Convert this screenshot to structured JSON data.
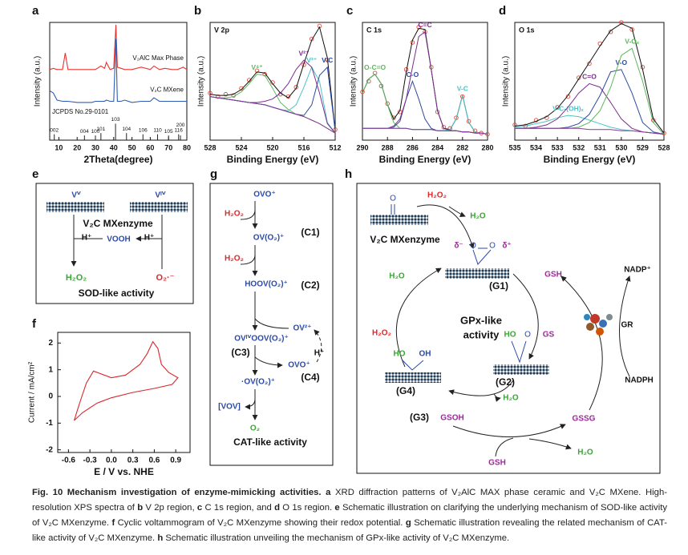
{
  "chart_data": [
    {
      "panel": "a",
      "type": "line",
      "xlabel": "2Theta(degree)",
      "ylabel": "Intensity (a.u.)",
      "xlim": [
        5,
        80
      ],
      "xticks": [
        10,
        20,
        30,
        40,
        50,
        60,
        70,
        80
      ],
      "ylim": [
        0,
        100
      ],
      "x": [
        5,
        7,
        9,
        12,
        13.5,
        15,
        20,
        25,
        28,
        30,
        33,
        35,
        36,
        38,
        40,
        41.2,
        42,
        44,
        46,
        50,
        55,
        60,
        62,
        65,
        68,
        72,
        75,
        78,
        80
      ],
      "series": [
        {
          "name": "V₂AlC Max Phase",
          "color": "#e8322f",
          "values": [
            60,
            61,
            60,
            60,
            74,
            60,
            60,
            60,
            60,
            60,
            63,
            61,
            66,
            60,
            61,
            98,
            62,
            61,
            60,
            60,
            62,
            60,
            63,
            60,
            61,
            60,
            60,
            62,
            60
          ]
        },
        {
          "name": "V₂C MXene",
          "color": "#2f5bb5",
          "values": [
            42,
            40,
            34,
            33,
            33,
            33,
            32,
            32,
            32,
            33,
            33,
            33,
            34,
            33,
            33,
            86,
            33,
            33,
            34,
            32,
            33,
            33,
            36,
            33,
            33,
            33,
            33,
            33,
            33
          ]
        }
      ],
      "reference": {
        "name": "JCPDS No.29-0101",
        "color": "#222222",
        "x": [
          7.5,
          24,
          30,
          33,
          41,
          47,
          56,
          64,
          70,
          75.5,
          76.5
        ],
        "values": [
          5,
          4,
          4,
          6,
          14,
          6,
          5,
          5,
          4,
          5,
          4
        ],
        "labels": [
          "002",
          "004",
          "100",
          "101",
          "103",
          "104",
          "106",
          "110",
          "105",
          "116",
          "200"
        ]
      }
    },
    {
      "panel": "b",
      "type": "xps",
      "title": "V 2p",
      "xlabel": "Binding Energy (eV)",
      "ylabel": "Intensity (a.u.)",
      "xlim": [
        528,
        512
      ],
      "xticks": [
        528,
        524,
        520,
        516,
        512
      ],
      "ylim": [
        0,
        100
      ],
      "x": [
        528,
        527,
        526,
        525,
        524,
        523,
        522,
        521,
        520,
        519,
        518,
        517,
        516,
        515,
        514,
        513,
        512
      ],
      "series": [
        {
          "color": "#e04a3a",
          "marker": "circle",
          "values": [
            40,
            37,
            39,
            38,
            44,
            51,
            59,
            56,
            49,
            39,
            37,
            45,
            64,
            86,
            97,
            68,
            9
          ]
        },
        {
          "color": "#111111",
          "values": [
            39,
            38,
            38,
            39,
            43,
            50,
            58,
            57,
            48,
            40,
            36,
            44,
            65,
            85,
            96,
            70,
            8
          ]
        },
        {
          "name": "V⁴⁺",
          "color": "#5cb85c",
          "values": [
            37,
            36,
            36,
            37,
            41,
            48,
            56,
            55,
            44,
            32,
            26,
            22,
            20,
            17,
            14,
            10,
            6
          ]
        },
        {
          "name": "V³⁺",
          "color": "#4cc3c9",
          "values": [
            37,
            36,
            35,
            34,
            33,
            32,
            31,
            30,
            28,
            26,
            25,
            30,
            45,
            62,
            50,
            15,
            6
          ]
        },
        {
          "name": "V²⁺",
          "color": "#7b2d8e",
          "values": [
            37,
            36,
            35,
            34,
            33,
            32,
            32,
            33,
            35,
            40,
            48,
            60,
            68,
            62,
            40,
            14,
            6
          ]
        },
        {
          "name": "V-C",
          "color": "#2c4aa0",
          "values": [
            37,
            36,
            35,
            34,
            33,
            32,
            31,
            30,
            28,
            26,
            24,
            22,
            21,
            30,
            55,
            62,
            8
          ]
        },
        {
          "color": "#8a3a9a",
          "values": [
            37,
            36,
            35,
            34,
            33,
            32,
            31,
            30,
            28,
            26,
            24,
            22,
            20,
            17,
            14,
            10,
            6
          ]
        }
      ]
    },
    {
      "panel": "c",
      "type": "xps",
      "title": "C 1s",
      "xlabel": "Binding Energy (eV)",
      "ylabel": "Intensity (a.u.)",
      "xlim": [
        290,
        280
      ],
      "xticks": [
        290,
        288,
        286,
        284,
        282,
        280
      ],
      "ylim": [
        0,
        100
      ],
      "x": [
        290,
        289.5,
        289,
        288.5,
        288,
        287.5,
        287,
        286.5,
        286,
        285.5,
        285,
        284.5,
        284,
        283.5,
        283,
        282.5,
        282,
        281.5,
        281,
        280.5,
        280
      ],
      "series": [
        {
          "color": "#e04a3a",
          "marker": "circle",
          "values": [
            41,
            50,
            57,
            46,
            31,
            19,
            24,
            60,
            83,
            96,
            92,
            62,
            24,
            11,
            10,
            19,
            37,
            16,
            8,
            6,
            5
          ]
        },
        {
          "color": "#111111",
          "values": [
            40,
            52,
            56,
            48,
            30,
            18,
            25,
            58,
            85,
            95,
            94,
            60,
            25,
            10,
            9,
            18,
            38,
            15,
            7,
            6,
            5
          ]
        },
        {
          "name": "O-C=O",
          "color": "#5cb85c",
          "values": [
            40,
            52,
            56,
            48,
            30,
            15,
            10,
            10,
            9,
            9,
            9,
            9,
            8,
            8,
            8,
            8,
            7,
            7,
            6,
            6,
            5
          ]
        },
        {
          "name": "C-O",
          "color": "#2c4aa0",
          "values": [
            10,
            10,
            10,
            10,
            10,
            11,
            16,
            35,
            50,
            35,
            18,
            10,
            8,
            8,
            8,
            8,
            7,
            7,
            6,
            6,
            5
          ]
        },
        {
          "name": "C=C",
          "color": "#7b2d8e",
          "values": [
            10,
            10,
            10,
            10,
            10,
            12,
            18,
            35,
            62,
            88,
            92,
            60,
            25,
            10,
            8,
            8,
            7,
            7,
            6,
            6,
            5
          ]
        },
        {
          "name": "V-C",
          "color": "#4cc3c9",
          "values": [
            10,
            10,
            10,
            10,
            10,
            10,
            10,
            10,
            9,
            9,
            9,
            9,
            8,
            8,
            9,
            18,
            38,
            15,
            7,
            6,
            5
          ]
        },
        {
          "color": "#8a3a9a",
          "values": [
            10,
            10,
            10,
            10,
            10,
            10,
            10,
            10,
            9,
            9,
            9,
            9,
            8,
            8,
            8,
            8,
            7,
            7,
            6,
            6,
            5
          ]
        }
      ]
    },
    {
      "panel": "d",
      "type": "xps",
      "title": "O 1s",
      "xlabel": "Binding Energy (eV)",
      "ylabel": "Intensity (a.u.)",
      "xlim": [
        535,
        528
      ],
      "xticks": [
        535,
        534,
        533,
        532,
        531,
        530,
        529,
        528
      ],
      "ylim": [
        0,
        100
      ],
      "x": [
        535,
        534.5,
        534,
        533.5,
        533,
        532.5,
        532,
        531.5,
        531,
        530.5,
        530,
        529.5,
        529,
        528.5,
        528
      ],
      "series": [
        {
          "color": "#e04a3a",
          "marker": "circle",
          "values": [
            13,
            12,
            17,
            19,
            28,
            37,
            53,
            65,
            82,
            92,
            100,
            94,
            62,
            17,
            6
          ]
        },
        {
          "color": "#111111",
          "values": [
            12,
            13,
            16,
            20,
            27,
            38,
            52,
            66,
            80,
            93,
            99,
            95,
            60,
            18,
            6
          ]
        },
        {
          "name": "V-C-(OH)ₓ",
          "color": "#4cc3c9",
          "values": [
            11,
            12,
            14,
            16,
            19,
            21,
            20,
            17,
            14,
            11,
            9,
            8,
            7,
            6,
            5
          ]
        },
        {
          "name": "C=O",
          "color": "#7b2d8e",
          "values": [
            10,
            10,
            11,
            13,
            18,
            28,
            40,
            48,
            45,
            32,
            18,
            10,
            7,
            6,
            5
          ]
        },
        {
          "name": "V-O",
          "color": "#2c4aa0",
          "values": [
            10,
            10,
            10,
            10,
            10,
            11,
            14,
            22,
            38,
            58,
            60,
            40,
            15,
            7,
            5
          ]
        },
        {
          "name": "V-Oₓ",
          "color": "#5cb85c",
          "values": [
            10,
            10,
            10,
            10,
            10,
            10,
            11,
            15,
            25,
            45,
            72,
            78,
            50,
            15,
            5
          ]
        },
        {
          "color": "#8a3a9a",
          "values": [
            10,
            10,
            10,
            10,
            10,
            10,
            10,
            9,
            9,
            9,
            8,
            8,
            7,
            6,
            5
          ]
        }
      ]
    },
    {
      "panel": "f",
      "type": "line",
      "xlabel": "E / V vs. NHE",
      "ylabel": "Current / mA/cm²",
      "xlim": [
        -0.75,
        1.1
      ],
      "xticks": [
        -0.6,
        -0.3,
        {
          "value": 0,
          "label": "0.0"
        },
        0.3,
        0.6,
        0.9
      ],
      "ylim": [
        -2.1,
        2.4
      ],
      "yticks": [
        -2,
        -1,
        0,
        1,
        2
      ],
      "x": [
        -0.52,
        -0.45,
        -0.35,
        -0.25,
        -0.15,
        0.0,
        0.2,
        0.4,
        0.5,
        0.58,
        0.65,
        0.7,
        0.8,
        0.93,
        0.85,
        0.6,
        0.3,
        0.0,
        -0.2,
        -0.4,
        -0.52
      ],
      "series": [
        {
          "color": "#d8262c",
          "values": [
            -0.9,
            -0.3,
            0.5,
            0.95,
            0.85,
            0.7,
            0.8,
            1.2,
            1.6,
            2.05,
            1.8,
            1.2,
            0.9,
            0.7,
            0.45,
            0.3,
            0.15,
            -0.05,
            -0.25,
            -0.6,
            -0.9
          ]
        }
      ]
    }
  ],
  "diagrams": {
    "e": {
      "panel": "e",
      "v_top_left": "Vⱽ",
      "v_top_right": "Vᴵⱽ",
      "enzyme": "V₂C MXenzyme",
      "proton_left": "H⁺",
      "intermediate": "VOOH",
      "proton_right": "H⁺",
      "product": "H₂O₂",
      "substrate": "O₂·⁻",
      "activity": "SOD-like activity"
    },
    "g": {
      "panel": "g",
      "s0": "OVO⁺",
      "r1": "H₂O₂",
      "s1": "OV(O₂)⁺",
      "c1": "(C1)",
      "r2": "H₂O₂",
      "s2": "HOOV(O₂)⁺",
      "c2": "(C2)",
      "s3b": "OV²⁺",
      "s3": "OVᴵⱽOOV(O₂)⁺",
      "c3": "(C3)",
      "proton": "H⁺",
      "s4b": "OVO⁺",
      "s4": "·OV(O₂)⁺",
      "c4": "(C4)",
      "side": "[VOV]",
      "product": "O₂",
      "activity": "CAT-like activity"
    },
    "h": {
      "panel": "h",
      "oxygen": "O",
      "enzyme": "V₂C MXenzyme",
      "h2o2_top": "H₂O₂",
      "h2o_top": "H₂O",
      "delta_minus": "δ⁻",
      "o1": "O",
      "o2": "O",
      "delta_plus": "δ⁺",
      "g1": "(G1)",
      "h2o_left": "H₂O",
      "gsh_right": "GSH",
      "h2o2_left": "H₂O₂",
      "activity_line1": "GPx-like",
      "activity_line2": "activity",
      "g4_ho": "HO",
      "g4_oh": "OH",
      "g2_ho": "HO",
      "g2_o": "O",
      "g2_gs": "GS",
      "g4": "(G4)",
      "g2": "(G2)",
      "h2o_mid": "H₂O",
      "g3": "(G3)",
      "gsoh": "GSOH",
      "gssg": "GSSG",
      "h2o_bottom": "H₂O",
      "gsh_bottom": "GSH",
      "nadp": "NADP⁺",
      "gr": "GR",
      "nadph": "NADPH"
    }
  },
  "caption": [
    {
      "text": "Fig. 10 Mechanism investigation of enzyme-mimicking activities. ",
      "bold": true
    },
    {
      "text": "a",
      "bold": true
    },
    {
      "text": " XRD diffraction patterns of V₂AlC MAX phase ceramic and V₂C MXene. High-resolution XPS spectra of "
    },
    {
      "text": "b",
      "bold": true
    },
    {
      "text": " V 2p region, "
    },
    {
      "text": "c",
      "bold": true
    },
    {
      "text": " C 1s region, and "
    },
    {
      "text": "d",
      "bold": true
    },
    {
      "text": " O 1s region. "
    },
    {
      "text": "e",
      "bold": true
    },
    {
      "text": " Schematic illustration on clarifying the underlying mechanism of SOD-like activity of V₂C MXenzyme. "
    },
    {
      "text": "f",
      "bold": true
    },
    {
      "text": " Cyclic voltammogram of V₂C MXenzyme showing their redox potential. "
    },
    {
      "text": "g",
      "bold": true
    },
    {
      "text": " Schematic illustration revealing the related mechanism of CAT-like activity of V₂C MXenzyme. "
    },
    {
      "text": "h",
      "bold": true
    },
    {
      "text": " Schematic illustration unveiling the mechanism of GPx-like activity of V₂C MXenzyme."
    }
  ]
}
